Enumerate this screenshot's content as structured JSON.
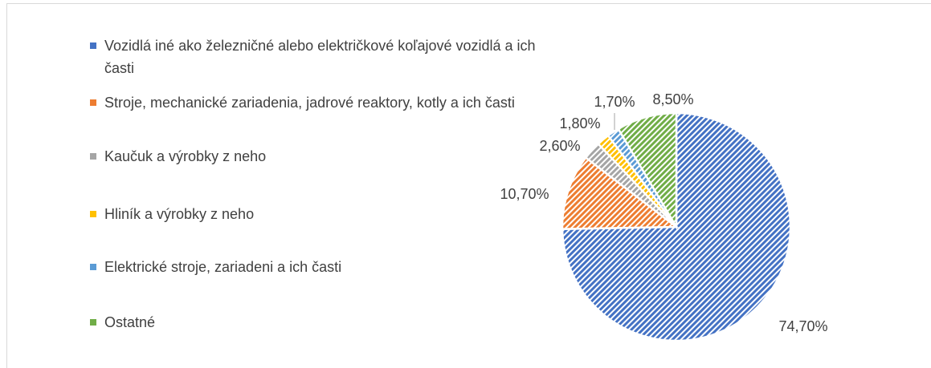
{
  "chart_data": {
    "type": "pie",
    "categories": [
      "Vozidlá iné ako železničné alebo električkové koľajové vozidlá a ich časti",
      "Stroje, mechanické zariadenia, jadrové reaktory, kotly a ich časti",
      "Kaučuk a výrobky z neho",
      "Hliník a výrobky z neho",
      "Elektrické stroje, zariadeni a ich časti",
      "Ostatné"
    ],
    "values": [
      74.7,
      10.7,
      2.6,
      1.8,
      1.7,
      8.5
    ],
    "value_labels": [
      "74,70%",
      "10,70%",
      "2,60%",
      "1,80%",
      "1,70%",
      "8,50%"
    ],
    "colors": [
      "#4472c4",
      "#ed7d31",
      "#a5a5a5",
      "#ffc000",
      "#5b9bd5",
      "#70ad47"
    ],
    "legend": "left"
  }
}
